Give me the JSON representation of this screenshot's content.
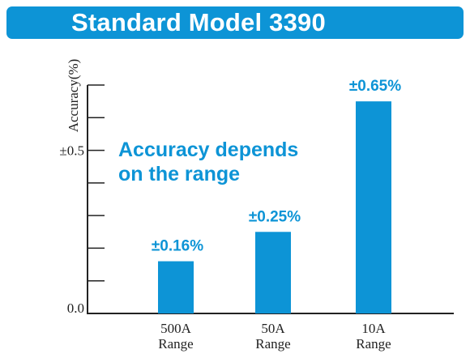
{
  "header": {
    "title": "Standard Model 3390"
  },
  "chart_data": {
    "type": "bar",
    "title": "Standard Model 3390",
    "ylabel": "Accuracy(%)",
    "xlabel": "",
    "categories": [
      [
        "500A",
        "Range"
      ],
      [
        "50A",
        "Range"
      ],
      [
        "10A",
        "Range"
      ]
    ],
    "values": [
      0.16,
      0.25,
      0.65
    ],
    "value_labels": [
      "±0.16%",
      "±0.25%",
      "±0.65%"
    ],
    "ylim": [
      0,
      0.7
    ],
    "y_tick_labels": [
      {
        "value": 0.0,
        "label": "0.0"
      },
      {
        "value": 0.5,
        "label": "±0.5"
      }
    ],
    "annotation": [
      "Accuracy depends",
      "on the range"
    ],
    "grid": false,
    "colors": {
      "bar": "#0d94d6",
      "label": "#0d94d6",
      "axis": "#222222"
    }
  }
}
